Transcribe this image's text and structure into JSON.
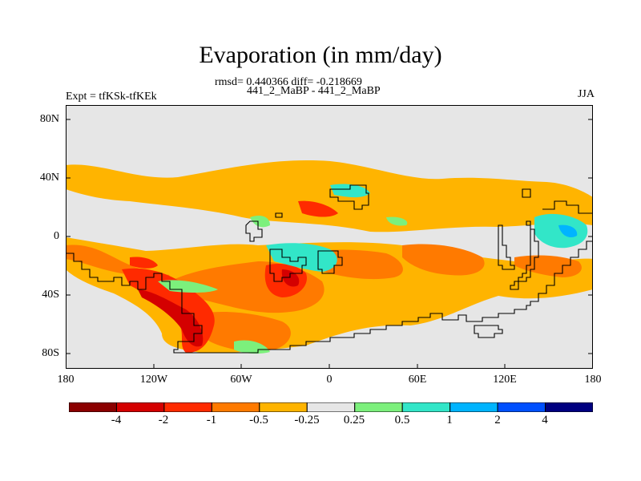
{
  "header": {
    "title": "Evaporation (in mm/day)",
    "stats": "rmsd= 0.440366 diff= -0.218669",
    "runs": "441_2_MaBP - 441_2_MaBP",
    "experiment": "Expt = tfKSk-tfKEk",
    "season": "JJA"
  },
  "map": {
    "lat_labels": [
      "80N",
      "40N",
      "0",
      "40S",
      "80S"
    ],
    "lon_labels": [
      "180",
      "120W",
      "60W",
      "0",
      "60E",
      "120E",
      "180"
    ]
  },
  "legend": {
    "labels": [
      "-4",
      "-2",
      "-1",
      "-0.5",
      "-0.25",
      "0.25",
      "0.5",
      "1",
      "2",
      "4"
    ],
    "colors": [
      "#8b0000",
      "#d40000",
      "#ff2a00",
      "#ff7a00",
      "#ffb400",
      "#e6e6e6",
      "#7cf07c",
      "#32e6c8",
      "#00b4ff",
      "#0050ff",
      "#000080"
    ]
  },
  "colors": {
    "missing": "#e6e6e6",
    "ocean_white": "#ffffff",
    "coast": "#000000"
  }
}
